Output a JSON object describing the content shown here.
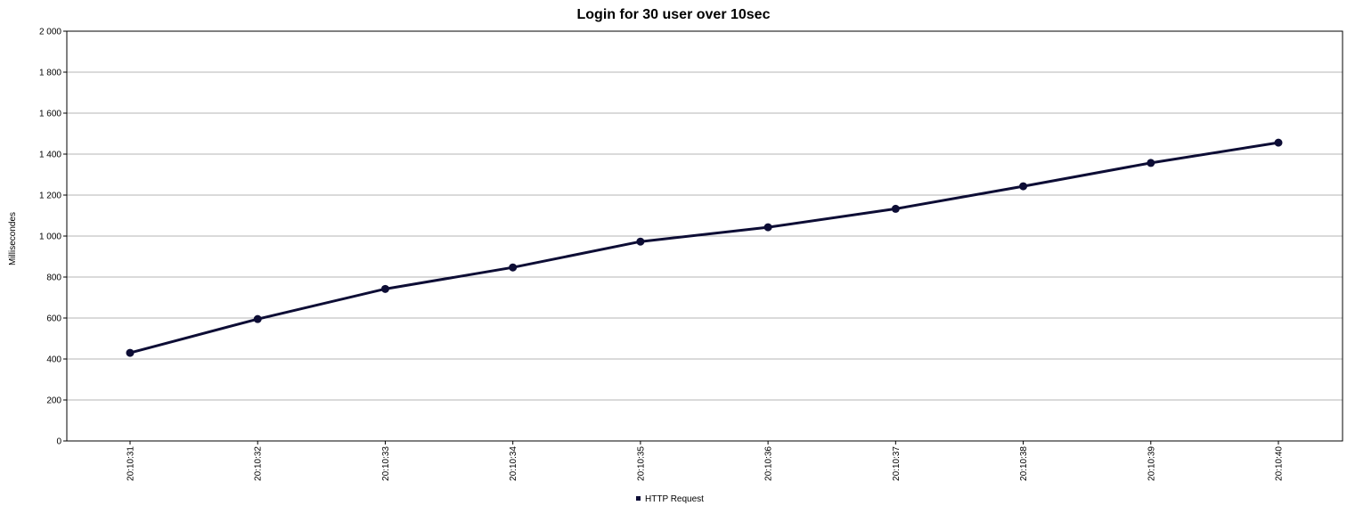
{
  "chart_data": {
    "type": "line",
    "title": "Login for 30 user over 10sec",
    "xlabel": "",
    "ylabel": "Millisecondes",
    "categories": [
      "20:10:31",
      "20:10:32",
      "20:10:33",
      "20:10:34",
      "20:10:35",
      "20:10:36",
      "20:10:37",
      "20:10:38",
      "20:10:39",
      "20:10:40"
    ],
    "ylim": [
      0,
      2000
    ],
    "yticks": [
      0,
      200,
      400,
      600,
      800,
      1000,
      1200,
      1400,
      1600,
      1800,
      2000
    ],
    "ytick_labels": [
      "0",
      "200",
      "400",
      "600",
      "800",
      "1 000",
      "1 200",
      "1 400",
      "1 600",
      "1 800",
      "2 000"
    ],
    "grid": true,
    "legend_position": "bottom",
    "series": [
      {
        "name": "HTTP Request",
        "color": "#0d0d35",
        "values": [
          430,
          595,
          742,
          847,
          973,
          1043,
          1133,
          1243,
          1357,
          1456
        ]
      }
    ]
  }
}
